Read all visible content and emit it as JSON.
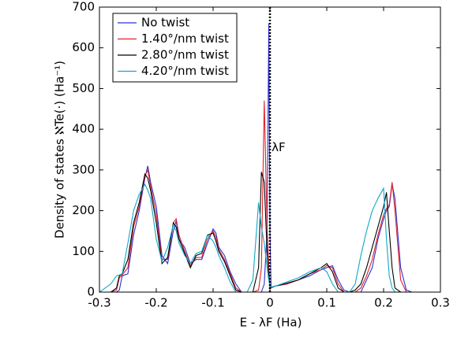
{
  "chart_data": {
    "type": "line",
    "xlabel": "E - λF (Ha)",
    "ylabel": "Density of states ℵTe(·) (Ha⁻¹)",
    "xlim": [
      -0.3,
      0.3
    ],
    "ylim": [
      0,
      700
    ],
    "xticks": [
      -0.3,
      -0.2,
      -0.1,
      0,
      0.1,
      0.2,
      0.3
    ],
    "yticks": [
      0,
      100,
      200,
      300,
      400,
      500,
      600,
      700
    ],
    "grid": false,
    "legend": "upper left",
    "vline": {
      "x": 0,
      "color": "#000000",
      "style": "dotted"
    },
    "annotations": [
      {
        "text": "λF",
        "x": 0.003,
        "y": 355
      }
    ],
    "x": [
      -0.3,
      -0.28,
      -0.27,
      -0.265,
      -0.26,
      -0.25,
      -0.24,
      -0.23,
      -0.22,
      -0.215,
      -0.21,
      -0.2,
      -0.19,
      -0.18,
      -0.17,
      -0.165,
      -0.16,
      -0.15,
      -0.14,
      -0.13,
      -0.12,
      -0.11,
      -0.1,
      -0.095,
      -0.09,
      -0.08,
      -0.07,
      -0.06,
      -0.05,
      -0.04,
      -0.03,
      -0.02,
      -0.015,
      -0.01,
      -0.005,
      -0.002,
      0,
      0.002,
      0.01,
      0.03,
      0.05,
      0.07,
      0.09,
      0.1,
      0.11,
      0.12,
      0.13,
      0.14,
      0.15,
      0.16,
      0.17,
      0.18,
      0.19,
      0.2,
      0.205,
      0.21,
      0.215,
      0.22,
      0.23,
      0.24,
      0.25,
      0.3
    ],
    "series": [
      {
        "name": "No twist",
        "color": "#3030d0",
        "values": [
          0,
          0,
          0,
          5,
          40,
          45,
          140,
          200,
          280,
          310,
          270,
          210,
          90,
          70,
          150,
          175,
          130,
          110,
          70,
          80,
          80,
          120,
          155,
          145,
          110,
          90,
          50,
          20,
          0,
          0,
          0,
          0,
          0,
          20,
          150,
          660,
          150,
          10,
          15,
          20,
          30,
          40,
          55,
          60,
          65,
          30,
          5,
          0,
          0,
          0,
          30,
          60,
          130,
          180,
          200,
          210,
          265,
          230,
          60,
          5,
          0,
          0
        ]
      },
      {
        "name": "1.40°/nm twist",
        "color": "#e0202a",
        "values": [
          0,
          0,
          5,
          35,
          42,
          60,
          160,
          210,
          285,
          300,
          260,
          190,
          80,
          80,
          170,
          180,
          140,
          100,
          65,
          85,
          85,
          130,
          150,
          135,
          105,
          80,
          45,
          10,
          0,
          0,
          0,
          5,
          60,
          470,
          160,
          60,
          15,
          12,
          15,
          20,
          30,
          45,
          55,
          65,
          60,
          20,
          0,
          0,
          0,
          10,
          40,
          80,
          140,
          190,
          205,
          215,
          270,
          200,
          30,
          0,
          0,
          0
        ]
      },
      {
        "name": "2.80°/nm twist",
        "color": "#000000",
        "values": [
          0,
          0,
          10,
          40,
          45,
          80,
          170,
          220,
          290,
          280,
          250,
          170,
          70,
          85,
          170,
          160,
          130,
          95,
          60,
          90,
          95,
          140,
          145,
          125,
          100,
          75,
          40,
          5,
          0,
          0,
          0,
          60,
          295,
          270,
          100,
          40,
          12,
          12,
          15,
          22,
          30,
          45,
          60,
          70,
          50,
          10,
          0,
          0,
          5,
          20,
          60,
          110,
          160,
          210,
          245,
          150,
          60,
          10,
          0,
          0,
          0,
          0
        ]
      },
      {
        "name": "4.20°/nm twist",
        "color": "#10a8c8",
        "values": [
          0,
          20,
          40,
          42,
          45,
          120,
          200,
          240,
          265,
          250,
          230,
          130,
          75,
          110,
          165,
          150,
          120,
          90,
          70,
          95,
          100,
          140,
          125,
          110,
          90,
          60,
          25,
          0,
          0,
          0,
          30,
          220,
          160,
          120,
          60,
          30,
          15,
          12,
          15,
          25,
          35,
          50,
          60,
          50,
          20,
          0,
          0,
          0,
          20,
          90,
          150,
          200,
          230,
          255,
          130,
          40,
          10,
          0,
          0,
          0,
          0,
          0
        ]
      }
    ]
  }
}
